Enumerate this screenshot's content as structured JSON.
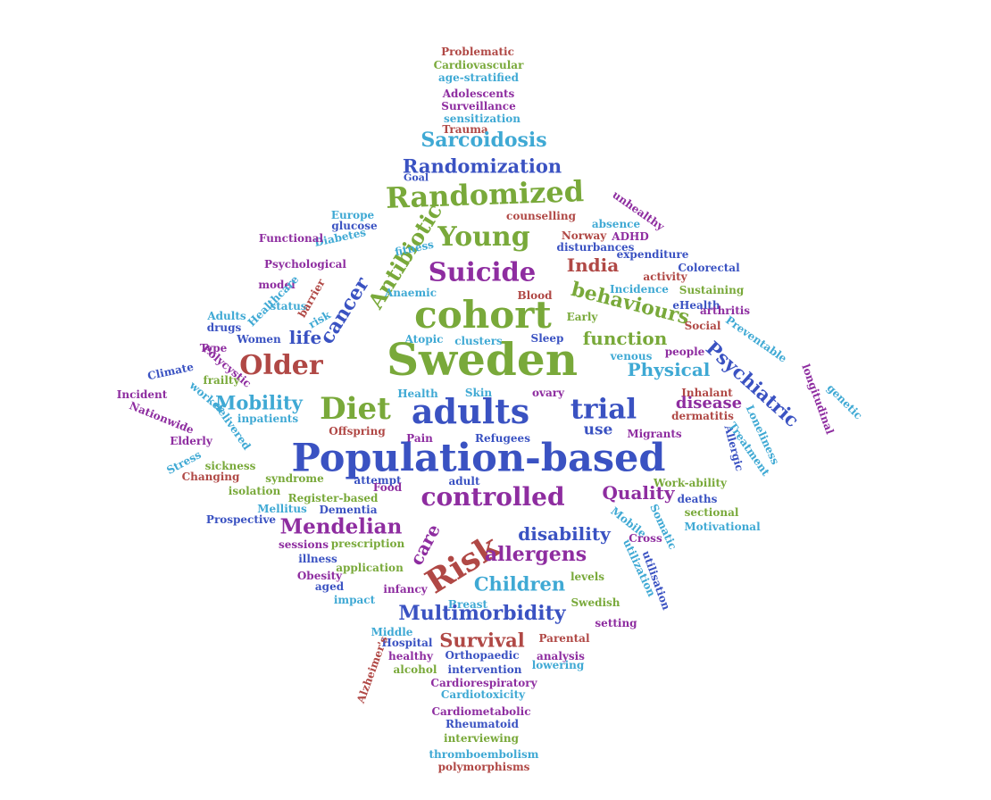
{
  "words": [
    {
      "text": "Problematic",
      "color": "red"
    },
    {
      "text": "Cardiovascular",
      "color": "green"
    },
    {
      "text": "age-stratified",
      "color": "cyan"
    },
    {
      "text": "Adolescents",
      "color": "purple"
    },
    {
      "text": "Surveillance",
      "color": "purple"
    },
    {
      "text": "sensitization",
      "color": "cyan"
    },
    {
      "text": "Trauma",
      "color": "red"
    },
    {
      "text": "Sarcoidosis",
      "color": "cyan"
    },
    {
      "text": "Randomization",
      "color": "blue"
    },
    {
      "text": "Goal",
      "color": "blue"
    },
    {
      "text": "Randomized",
      "color": "green"
    },
    {
      "text": "unhealthy",
      "color": "purple"
    },
    {
      "text": "Europe",
      "color": "cyan"
    },
    {
      "text": "glucose",
      "color": "blue"
    },
    {
      "text": "Diabetes",
      "color": "cyan"
    },
    {
      "text": "Antibiotic",
      "color": "green"
    },
    {
      "text": "counselling",
      "color": "red"
    },
    {
      "text": "absence",
      "color": "cyan"
    },
    {
      "text": "Young",
      "color": "green"
    },
    {
      "text": "Norway",
      "color": "red"
    },
    {
      "text": "ADHD",
      "color": "purple"
    },
    {
      "text": "disturbances",
      "color": "blue"
    },
    {
      "text": "Functional",
      "color": "purple"
    },
    {
      "text": "fitness",
      "color": "cyan"
    },
    {
      "text": "expenditure",
      "color": "blue"
    },
    {
      "text": "Psychological",
      "color": "purple"
    },
    {
      "text": "Suicide",
      "color": "purple"
    },
    {
      "text": "India",
      "color": "red"
    },
    {
      "text": "Colorectal",
      "color": "blue"
    },
    {
      "text": "activity",
      "color": "red"
    },
    {
      "text": "model",
      "color": "purple"
    },
    {
      "text": "Healthcare",
      "color": "cyan"
    },
    {
      "text": "cancer",
      "color": "blue"
    },
    {
      "text": "Anaemic",
      "color": "cyan"
    },
    {
      "text": "behaviours",
      "color": "green"
    },
    {
      "text": "Sustaining",
      "color": "green"
    },
    {
      "text": "Blood",
      "color": "red"
    },
    {
      "text": "status",
      "color": "cyan"
    },
    {
      "text": "barrier",
      "color": "red"
    },
    {
      "text": "risk",
      "color": "cyan"
    },
    {
      "text": "Incidence",
      "color": "cyan"
    },
    {
      "text": "eHealth",
      "color": "blue"
    },
    {
      "text": "cohort",
      "color": "green"
    },
    {
      "text": "arthritis",
      "color": "purple"
    },
    {
      "text": "Adults",
      "color": "cyan"
    },
    {
      "text": "drugs",
      "color": "blue"
    },
    {
      "text": "Early",
      "color": "green"
    },
    {
      "text": "Social",
      "color": "red"
    },
    {
      "text": "Preventable",
      "color": "cyan"
    },
    {
      "text": "Type",
      "color": "purple"
    },
    {
      "text": "Women",
      "color": "blue"
    },
    {
      "text": "life",
      "color": "blue"
    },
    {
      "text": "Atopic",
      "color": "cyan"
    },
    {
      "text": "clusters",
      "color": "cyan"
    },
    {
      "text": "Sleep",
      "color": "blue"
    },
    {
      "text": "function",
      "color": "green"
    },
    {
      "text": "venous",
      "color": "cyan"
    },
    {
      "text": "people",
      "color": "purple"
    },
    {
      "text": "Polycystic",
      "color": "purple"
    },
    {
      "text": "Climate",
      "color": "blue"
    },
    {
      "text": "Older",
      "color": "red"
    },
    {
      "text": "Sweden",
      "color": "green"
    },
    {
      "text": "Physical",
      "color": "cyan"
    },
    {
      "text": "Psychiatric",
      "color": "blue"
    },
    {
      "text": "longitudinal",
      "color": "purple"
    },
    {
      "text": "genetic",
      "color": "cyan"
    },
    {
      "text": "frailty",
      "color": "green"
    },
    {
      "text": "Incident",
      "color": "purple"
    },
    {
      "text": "worker",
      "color": "cyan"
    },
    {
      "text": "Mobility",
      "color": "cyan"
    },
    {
      "text": "Diet",
      "color": "green"
    },
    {
      "text": "Health",
      "color": "cyan"
    },
    {
      "text": "Skin",
      "color": "cyan"
    },
    {
      "text": "ovary",
      "color": "purple"
    },
    {
      "text": "adults",
      "color": "blue"
    },
    {
      "text": "trial",
      "color": "blue"
    },
    {
      "text": "Inhalant",
      "color": "red"
    },
    {
      "text": "disease",
      "color": "purple"
    },
    {
      "text": "Nationwide",
      "color": "purple"
    },
    {
      "text": "delivered",
      "color": "cyan"
    },
    {
      "text": "inpatients",
      "color": "cyan"
    },
    {
      "text": "dermatitis",
      "color": "red"
    },
    {
      "text": "Loneliness",
      "color": "cyan"
    },
    {
      "text": "Offspring",
      "color": "red"
    },
    {
      "text": "use",
      "color": "blue"
    },
    {
      "text": "Allergic",
      "color": "blue"
    },
    {
      "text": "Treatment",
      "color": "cyan"
    },
    {
      "text": "Elderly",
      "color": "purple"
    },
    {
      "text": "Pain",
      "color": "purple"
    },
    {
      "text": "Refugees",
      "color": "blue"
    },
    {
      "text": "Migrants",
      "color": "purple"
    },
    {
      "text": "Stress",
      "color": "cyan"
    },
    {
      "text": "Population-based",
      "color": "blue"
    },
    {
      "text": "sickness",
      "color": "green"
    },
    {
      "text": "Changing",
      "color": "red"
    },
    {
      "text": "syndrome",
      "color": "green"
    },
    {
      "text": "attempt",
      "color": "blue"
    },
    {
      "text": "adult",
      "color": "blue"
    },
    {
      "text": "Work-ability",
      "color": "green"
    },
    {
      "text": "isolation",
      "color": "green"
    },
    {
      "text": "Food",
      "color": "purple"
    },
    {
      "text": "Register-based",
      "color": "green"
    },
    {
      "text": "controlled",
      "color": "purple"
    },
    {
      "text": "Quality",
      "color": "purple"
    },
    {
      "text": "deaths",
      "color": "blue"
    },
    {
      "text": "Mellitus",
      "color": "cyan"
    },
    {
      "text": "Dementia",
      "color": "blue"
    },
    {
      "text": "Somatic",
      "color": "cyan"
    },
    {
      "text": "sectional",
      "color": "green"
    },
    {
      "text": "Prospective",
      "color": "blue"
    },
    {
      "text": "Mobile",
      "color": "cyan"
    },
    {
      "text": "Motivational",
      "color": "cyan"
    },
    {
      "text": "Mendelian",
      "color": "purple"
    },
    {
      "text": "Cross",
      "color": "purple"
    },
    {
      "text": "disability",
      "color": "blue"
    },
    {
      "text": "sessions",
      "color": "purple"
    },
    {
      "text": "prescription",
      "color": "green"
    },
    {
      "text": "care",
      "color": "purple"
    },
    {
      "text": "Risk",
      "color": "red"
    },
    {
      "text": "allergens",
      "color": "purple"
    },
    {
      "text": "illness",
      "color": "blue"
    },
    {
      "text": "utilization",
      "color": "cyan"
    },
    {
      "text": "application",
      "color": "green"
    },
    {
      "text": "Obesity",
      "color": "purple"
    },
    {
      "text": "utilisation",
      "color": "blue"
    },
    {
      "text": "Children",
      "color": "cyan"
    },
    {
      "text": "aged",
      "color": "blue"
    },
    {
      "text": "infancy",
      "color": "purple"
    },
    {
      "text": "levels",
      "color": "green"
    },
    {
      "text": "impact",
      "color": "cyan"
    },
    {
      "text": "Breast",
      "color": "cyan"
    },
    {
      "text": "Swedish",
      "color": "green"
    },
    {
      "text": "Multimorbidity",
      "color": "blue"
    },
    {
      "text": "setting",
      "color": "purple"
    },
    {
      "text": "Middle",
      "color": "cyan"
    },
    {
      "text": "Survival",
      "color": "red"
    },
    {
      "text": "Parental",
      "color": "red"
    },
    {
      "text": "Hospital",
      "color": "blue"
    },
    {
      "text": "Orthopaedic",
      "color": "blue"
    },
    {
      "text": "analysis",
      "color": "purple"
    },
    {
      "text": "Alzheimer's",
      "color": "red"
    },
    {
      "text": "healthy",
      "color": "purple"
    },
    {
      "text": "alcohol",
      "color": "green"
    },
    {
      "text": "intervention",
      "color": "blue"
    },
    {
      "text": "lowering",
      "color": "cyan"
    },
    {
      "text": "Cardiorespiratory",
      "color": "purple"
    },
    {
      "text": "Cardiotoxicity",
      "color": "cyan"
    },
    {
      "text": "Cardiometabolic",
      "color": "purple"
    },
    {
      "text": "Rheumatoid",
      "color": "blue"
    },
    {
      "text": "interviewing",
      "color": "green"
    },
    {
      "text": "thromboembolism",
      "color": "cyan"
    },
    {
      "text": "polymorphisms",
      "color": "red"
    }
  ]
}
